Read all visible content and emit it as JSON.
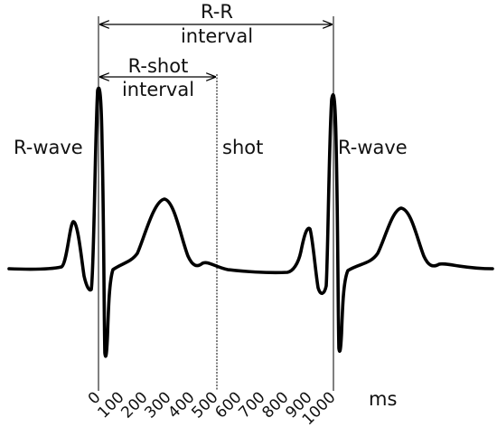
{
  "labels": {
    "rr_line1": "R-R",
    "rr_line2": "interval",
    "rshot_line1": "R-shot",
    "rshot_line2": "interval",
    "rwave_left": "R-wave",
    "rwave_right": "R-wave",
    "shot": "shot",
    "unit": "ms"
  },
  "axis": {
    "ticks": [
      "0",
      "100",
      "200",
      "300",
      "400",
      "500",
      "600",
      "700",
      "800",
      "900",
      "1000"
    ]
  },
  "colors": {
    "trace": "#000000",
    "lines": "#000000",
    "background": "#ffffff"
  }
}
